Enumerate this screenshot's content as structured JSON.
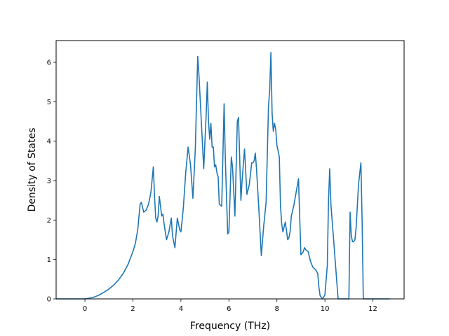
{
  "chart_data": {
    "type": "line",
    "title": "",
    "xlabel": "Frequency (THz)",
    "ylabel": "Density of States",
    "xlim": [
      -1.2,
      13.3
    ],
    "ylim": [
      0,
      6.55
    ],
    "x_ticks": [
      "0",
      "2",
      "4",
      "6",
      "8",
      "10",
      "12"
    ],
    "y_ticks": [
      "0",
      "1",
      "2",
      "3",
      "4",
      "5",
      "6"
    ],
    "grid": false,
    "line_color": "#1f77b4",
    "series": [
      {
        "x": [
          -1.2,
          0.0,
          0.2,
          0.4,
          0.6,
          0.8,
          1.0,
          1.2,
          1.4,
          1.6,
          1.8,
          2.0,
          2.1,
          2.2,
          2.3,
          2.35,
          2.45,
          2.55,
          2.65,
          2.75,
          2.85,
          2.9,
          2.95,
          3.0,
          3.05,
          3.1,
          3.2,
          3.25,
          3.3,
          3.4,
          3.5,
          3.6,
          3.65,
          3.75,
          3.85,
          3.95,
          4.0,
          4.1,
          4.2,
          4.3,
          4.4,
          4.5,
          4.6,
          4.7,
          4.75,
          4.85,
          4.95,
          5.05,
          5.1,
          5.15,
          5.2,
          5.25,
          5.3,
          5.35,
          5.4,
          5.45,
          5.5,
          5.55,
          5.6,
          5.7,
          5.8,
          5.85,
          5.95,
          6.0,
          6.1,
          6.15,
          6.25,
          6.35,
          6.4,
          6.5,
          6.55,
          6.65,
          6.75,
          6.85,
          6.95,
          7.0,
          7.05,
          7.1,
          7.15,
          7.25,
          7.35,
          7.45,
          7.55,
          7.65,
          7.7,
          7.75,
          7.8,
          7.85,
          7.9,
          7.95,
          8.0,
          8.05,
          8.1,
          8.15,
          8.2,
          8.25,
          8.35,
          8.45,
          8.5,
          8.55,
          8.6,
          8.7,
          8.8,
          8.9,
          9.0,
          9.05,
          9.1,
          9.15,
          9.2,
          9.3,
          9.4,
          9.5,
          9.6,
          9.7,
          9.75,
          9.8,
          9.9,
          10.0,
          10.1,
          10.15,
          10.2,
          10.25,
          10.3,
          10.35,
          10.45,
          10.55,
          10.65,
          10.75,
          10.85,
          10.95,
          11.0,
          11.05,
          11.1,
          11.15,
          11.2,
          11.25,
          11.3,
          11.4,
          11.5,
          11.55,
          11.6,
          11.7,
          11.9,
          12.7
        ],
        "y": [
          0.0,
          0.0,
          0.02,
          0.05,
          0.1,
          0.17,
          0.25,
          0.35,
          0.48,
          0.65,
          0.88,
          1.2,
          1.4,
          1.75,
          2.4,
          2.45,
          2.2,
          2.25,
          2.4,
          2.7,
          3.35,
          2.6,
          2.05,
          1.95,
          2.1,
          2.6,
          2.1,
          2.15,
          1.9,
          1.5,
          1.7,
          2.05,
          1.6,
          1.3,
          2.05,
          1.75,
          1.7,
          2.3,
          3.2,
          3.85,
          3.4,
          2.55,
          3.8,
          6.15,
          5.7,
          4.5,
          3.3,
          4.65,
          5.5,
          4.5,
          4.05,
          4.45,
          3.85,
          3.85,
          3.35,
          3.4,
          3.2,
          3.1,
          2.4,
          2.35,
          4.95,
          3.55,
          1.65,
          1.7,
          3.6,
          3.35,
          2.1,
          4.5,
          4.6,
          2.5,
          3.0,
          3.8,
          2.65,
          2.9,
          3.45,
          3.45,
          3.5,
          3.7,
          3.3,
          2.25,
          1.1,
          1.85,
          2.45,
          4.9,
          5.3,
          6.25,
          4.7,
          4.25,
          4.45,
          4.3,
          3.9,
          3.75,
          3.6,
          2.35,
          1.9,
          1.7,
          1.95,
          1.5,
          1.55,
          1.7,
          2.1,
          2.35,
          2.7,
          3.05,
          1.12,
          1.15,
          1.2,
          1.3,
          1.25,
          1.2,
          0.95,
          0.8,
          0.75,
          0.65,
          0.3,
          0.08,
          0.0,
          0.1,
          0.85,
          2.5,
          3.3,
          2.4,
          2.0,
          1.6,
          0.8,
          0.0,
          0.0,
          0.0,
          0.0,
          0.0,
          0.0,
          2.2,
          1.6,
          1.45,
          1.45,
          1.5,
          1.8,
          2.9,
          3.45,
          2.0,
          0.0,
          0.0,
          0.0,
          0.0
        ]
      }
    ]
  }
}
